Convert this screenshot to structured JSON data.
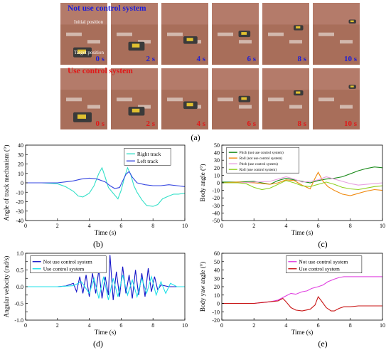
{
  "panel_a": {
    "row1_label": "Not use control system",
    "row2_label": "Use control system",
    "row1_color": "#1f1fd6",
    "row2_color": "#e01818",
    "initial_position": "Initial position",
    "target_position": "Target position",
    "times": [
      "0 s",
      "2 s",
      "4 s",
      "6 s",
      "8 s",
      "10 s"
    ],
    "caption": "(a)"
  },
  "captions": {
    "b": "(b)",
    "c": "(c)",
    "d": "(d)",
    "e": "(e)"
  },
  "chart_data": [
    {
      "id": "b",
      "type": "line",
      "xlabel": "Time (s)",
      "ylabel": "Angle of track mechanism (°)",
      "xlim": [
        0,
        10
      ],
      "ylim": [
        -40,
        40
      ],
      "xticks": [
        0,
        2,
        4,
        6,
        8,
        10
      ],
      "yticks": [
        -40,
        -30,
        -20,
        -10,
        0,
        10,
        20,
        30,
        40
      ],
      "legend": "top-right",
      "series": [
        {
          "name": "Right track",
          "color": "#33e0c8",
          "x": [
            0,
            1,
            2,
            2.5,
            3,
            3.3,
            3.6,
            4,
            4.3,
            4.6,
            4.8,
            5,
            5.2,
            5.5,
            5.8,
            6,
            6.2,
            6.4,
            6.6,
            6.8,
            7,
            7.3,
            7.6,
            8,
            8.3,
            8.6,
            9,
            9.3,
            9.6,
            10
          ],
          "y": [
            0,
            0,
            -1,
            -4,
            -9,
            -14,
            -15,
            -11,
            -3,
            10,
            16,
            6,
            -5,
            -11,
            -17,
            -8,
            5,
            16,
            9,
            -3,
            -10,
            -18,
            -24,
            -25,
            -23,
            -17,
            -14,
            -12,
            -12,
            -11
          ]
        },
        {
          "name": "Left track",
          "color": "#3344e0",
          "x": [
            0,
            1,
            2,
            2.5,
            3,
            3.5,
            4,
            4.5,
            5,
            5.3,
            5.6,
            5.9,
            6.1,
            6.3,
            6.5,
            6.7,
            7,
            7.5,
            8,
            8.5,
            9,
            9.5,
            10
          ],
          "y": [
            0,
            0,
            0,
            1,
            2,
            4,
            5,
            4,
            1,
            -3,
            -6,
            -5,
            2,
            9,
            12,
            6,
            0,
            -2,
            -3,
            -3,
            -2,
            -3,
            -4
          ]
        }
      ]
    },
    {
      "id": "c",
      "type": "line",
      "xlabel": "Time (s)",
      "ylabel": "Body angle (°)",
      "xlim": [
        0,
        10
      ],
      "ylim": [
        -50,
        50
      ],
      "xticks": [
        0,
        2,
        4,
        6,
        8,
        10
      ],
      "yticks": [
        -50,
        -40,
        -30,
        -20,
        -10,
        0,
        10,
        20,
        30,
        40,
        50
      ],
      "legend": "top-left",
      "series": [
        {
          "name": "Pitch (not use control system)",
          "color": "#1a8a1a",
          "x": [
            0,
            1,
            2,
            2.5,
            3,
            3.5,
            4,
            4.5,
            5,
            5.5,
            6,
            6.5,
            7,
            7.5,
            8,
            8.5,
            9,
            9.5,
            10
          ],
          "y": [
            1,
            1,
            2,
            0,
            -2,
            3,
            6,
            4,
            2,
            0,
            3,
            5,
            6,
            8,
            12,
            16,
            19,
            21,
            20
          ]
        },
        {
          "name": "Roll (not use control system)",
          "color": "#f08a10",
          "x": [
            0,
            1,
            2,
            3,
            3.5,
            4,
            4.5,
            5,
            5.5,
            5.8,
            6,
            6.3,
            6.6,
            7,
            7.5,
            8,
            8.5,
            9,
            9.5,
            10
          ],
          "y": [
            0,
            1,
            0,
            -2,
            0,
            4,
            3,
            -3,
            -8,
            6,
            14,
            2,
            -5,
            -10,
            -15,
            -17,
            -14,
            -11,
            -9,
            -10
          ]
        },
        {
          "name": "Pitch (use control system)",
          "color": "#e8a0e0",
          "x": [
            0,
            1,
            2,
            3,
            3.5,
            4,
            4.5,
            5,
            5.5,
            6,
            6.5,
            7,
            7.5,
            8,
            8.5,
            9,
            9.5,
            10
          ],
          "y": [
            0,
            0,
            1,
            2,
            5,
            8,
            5,
            1,
            2,
            4,
            8,
            5,
            2,
            -1,
            -3,
            -2,
            -1,
            0
          ]
        },
        {
          "name": "Roll (use control system)",
          "color": "#90d020",
          "x": [
            0,
            1,
            1.5,
            2,
            2.5,
            3,
            3.5,
            4,
            4.5,
            5,
            5.5,
            6,
            6.5,
            7,
            7.5,
            8,
            8.5,
            9,
            9.5,
            10
          ],
          "y": [
            0,
            0,
            -1,
            -6,
            -9,
            -7,
            -2,
            3,
            0,
            -4,
            -5,
            -2,
            1,
            -2,
            -6,
            -8,
            -9,
            -7,
            -5,
            -4
          ]
        }
      ]
    },
    {
      "id": "d",
      "type": "line",
      "xlabel": "Time (s)",
      "ylabel": "Angular velocity (rad/s)",
      "xlim": [
        0,
        10
      ],
      "ylim": [
        -1.0,
        1.0
      ],
      "xticks": [
        0,
        2,
        4,
        6,
        8,
        10
      ],
      "yticks": [
        -1.0,
        -0.75,
        -0.5,
        -0.25,
        0.0,
        0.25,
        0.5,
        0.75,
        1.0
      ],
      "ytick_labels": [
        "-1.0",
        "",
        "-0.5",
        "",
        "0.0",
        "",
        "0.5",
        "",
        "1.0"
      ],
      "legend": "top-left",
      "series": [
        {
          "name": "Not use control system",
          "color": "#1414c8",
          "x": [
            0,
            1,
            2,
            2.5,
            3,
            3.2,
            3.4,
            3.6,
            3.8,
            4,
            4.2,
            4.4,
            4.6,
            4.8,
            5,
            5.2,
            5.3,
            5.5,
            5.7,
            5.9,
            6.1,
            6.3,
            6.5,
            6.7,
            6.9,
            7.1,
            7.3,
            7.5,
            7.7,
            7.9,
            8.1,
            8.3,
            8.5,
            9,
            10
          ],
          "y": [
            0,
            0,
            0,
            0.02,
            0.1,
            -0.15,
            0.3,
            -0.2,
            0.35,
            -0.3,
            0.4,
            -0.2,
            0.5,
            -0.35,
            0.3,
            -0.25,
            0.95,
            -0.4,
            0.45,
            -0.3,
            0.6,
            -0.2,
            0.35,
            -0.35,
            0.5,
            -0.25,
            0.4,
            -0.3,
            0.55,
            -0.15,
            0.3,
            -0.1,
            0.05,
            0,
            0
          ]
        },
        {
          "name": "Use control system",
          "color": "#20e0e8",
          "x": [
            0,
            1,
            2,
            3,
            3.5,
            4,
            4.3,
            4.6,
            4.9,
            5.2,
            5.5,
            5.8,
            6.1,
            6.4,
            6.7,
            7,
            7.3,
            7.6,
            7.9,
            8.2,
            8.5,
            8.8,
            9.1,
            9.5,
            10
          ],
          "y": [
            0,
            0,
            0,
            0.03,
            0.15,
            -0.2,
            0.25,
            -0.35,
            0.3,
            -0.4,
            0.25,
            -0.3,
            0.35,
            -0.25,
            0.2,
            -0.3,
            0.25,
            -0.2,
            0.3,
            -0.25,
            0.15,
            -0.2,
            0.1,
            0,
            0
          ]
        }
      ]
    },
    {
      "id": "e",
      "type": "line",
      "xlabel": "Time (s)",
      "ylabel": "Body yaw angle (°)",
      "xlim": [
        0,
        10
      ],
      "ylim": [
        -20,
        60
      ],
      "xticks": [
        0,
        2,
        4,
        6,
        8,
        10
      ],
      "yticks": [
        -20,
        -10,
        0,
        10,
        20,
        30,
        40,
        50,
        60
      ],
      "legend": "top-right",
      "series": [
        {
          "name": "Not use control system",
          "color": "#e040e0",
          "x": [
            0,
            1,
            2,
            2.5,
            3,
            3.5,
            4,
            4.3,
            4.6,
            5,
            5.3,
            5.6,
            6,
            6.3,
            6.6,
            7,
            7.3,
            7.6,
            8,
            8.5,
            9,
            9.5,
            10
          ],
          "y": [
            0,
            0,
            0,
            1,
            2,
            4,
            9,
            12,
            11,
            14,
            15,
            18,
            20,
            22,
            26,
            29,
            31,
            32,
            32,
            32,
            32,
            32,
            32
          ]
        },
        {
          "name": "Use control system",
          "color": "#c81414",
          "x": [
            0,
            1,
            2,
            2.5,
            3,
            3.5,
            3.8,
            4,
            4.3,
            4.6,
            5,
            5.5,
            5.8,
            6,
            6.2,
            6.5,
            6.8,
            7,
            7.3,
            7.6,
            8,
            8.5,
            9,
            9.5,
            10
          ],
          "y": [
            0,
            0,
            0,
            1,
            2,
            3,
            6,
            2,
            -5,
            -8,
            -9,
            -7,
            -2,
            8,
            3,
            -5,
            -9,
            -9,
            -6,
            -4,
            -4,
            -3,
            -3,
            -3,
            -3
          ]
        }
      ]
    }
  ]
}
